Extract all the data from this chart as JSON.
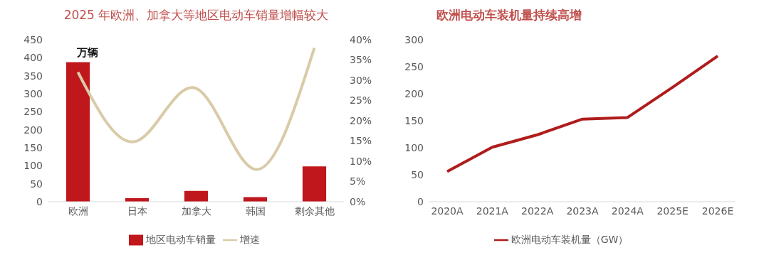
{
  "chart_data": [
    {
      "type": "bar",
      "title": "2025 年欧洲、加拿大等地区电动车销量增幅较大",
      "ylabel": "万辆",
      "categories": [
        "欧洲",
        "日本",
        "加拿大",
        "韩国",
        "剩余其他"
      ],
      "series": [
        {
          "name": "地区电动车销量",
          "color": "#c0171c",
          "values": [
            388,
            10,
            30,
            13,
            98
          ]
        },
        {
          "name": "增速",
          "type": "line",
          "axis": "y2",
          "color": "#d9cba8",
          "values": [
            32,
            15,
            28,
            8,
            38
          ]
        }
      ],
      "ylim": [
        0,
        450
      ],
      "yticks": [
        0,
        50,
        100,
        150,
        200,
        250,
        300,
        350,
        400,
        450
      ],
      "y2lim": [
        0,
        40
      ],
      "y2ticks": [
        {
          "value": 0,
          "label": "0%"
        },
        {
          "value": 5,
          "label": "5%"
        },
        {
          "value": 10,
          "label": "10%"
        },
        {
          "value": 15,
          "label": "15%"
        },
        {
          "value": 20,
          "label": "20%"
        },
        {
          "value": 25,
          "label": "25%"
        },
        {
          "value": 30,
          "label": "30%"
        },
        {
          "value": 35,
          "label": "35%"
        },
        {
          "value": 40,
          "label": "40%"
        }
      ],
      "grid": false,
      "legend": "bottom",
      "marker": "none"
    },
    {
      "type": "line",
      "title": "欧洲电动车装机量持续高增",
      "categories": [
        "2020A",
        "2021A",
        "2022A",
        "2023A",
        "2024A",
        "2025E",
        "2026E"
      ],
      "series": [
        {
          "name": "欧洲电动车装机量（GW）",
          "color": "#b01c1c",
          "values": [
            56,
            101,
            124,
            153,
            156,
            212,
            270
          ]
        }
      ],
      "ylim": [
        0,
        300
      ],
      "yticks": [
        0,
        50,
        100,
        150,
        200,
        250,
        300
      ],
      "grid": false,
      "legend": "bottom",
      "marker": "none",
      "line_style": "solid"
    }
  ]
}
